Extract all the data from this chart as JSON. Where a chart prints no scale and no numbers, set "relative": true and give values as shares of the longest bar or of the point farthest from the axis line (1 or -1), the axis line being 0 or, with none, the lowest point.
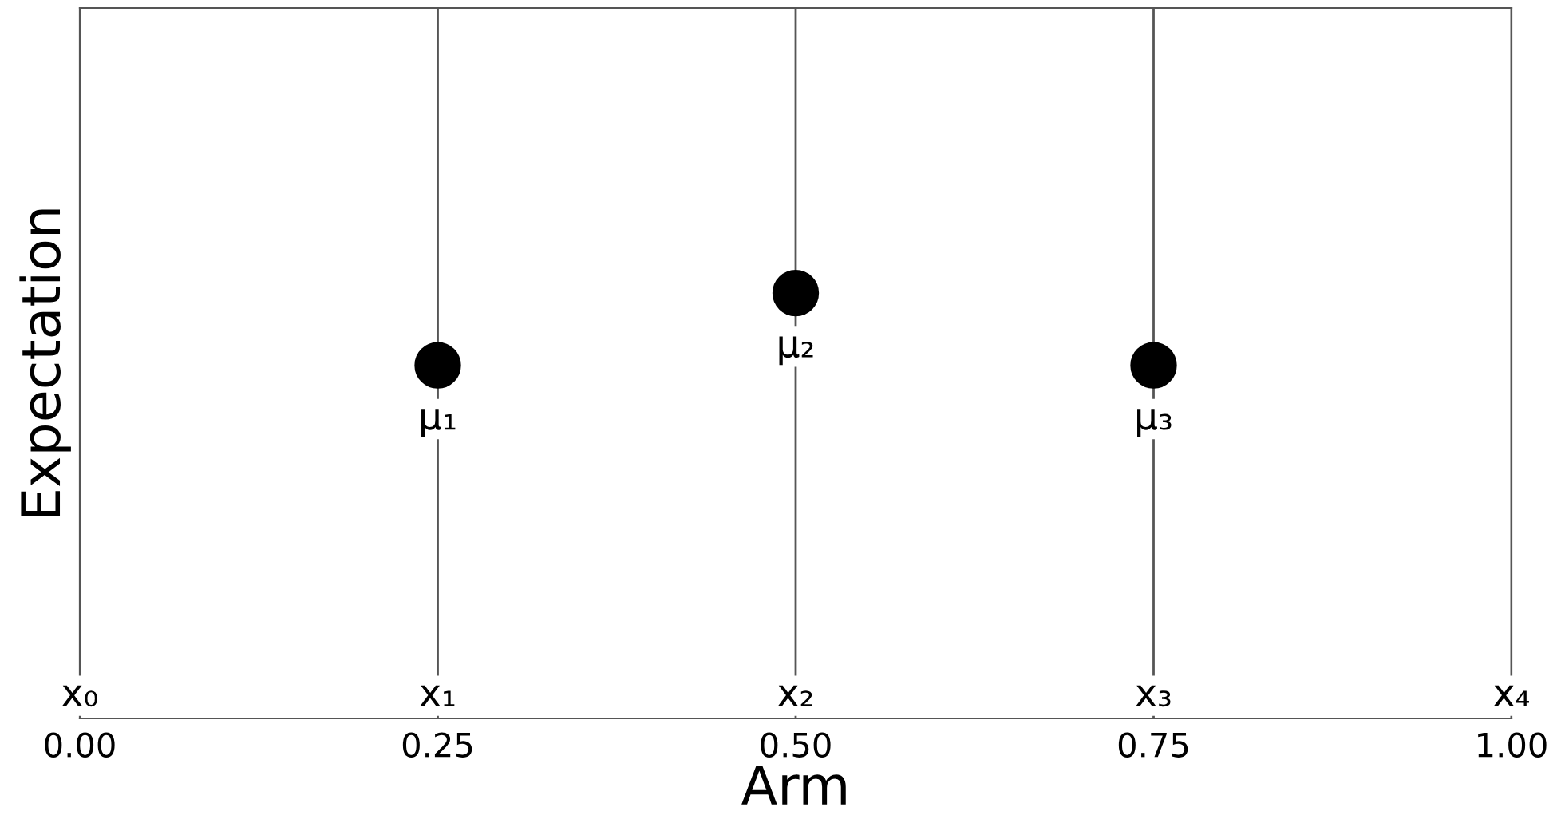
{
  "chart_data": {
    "type": "scatter",
    "xlabel": "Arm",
    "ylabel": "Expectation",
    "relative": true,
    "x": [
      0.25,
      0.5,
      0.75
    ],
    "series": [
      {
        "color": "#000000",
        "values": [
          0.83,
          1,
          0.83
        ]
      }
    ],
    "marker": "circle",
    "xlim": [
      0,
      1
    ],
    "xticks": [
      {
        "value": 0,
        "label": "0.00"
      },
      {
        "value": 0.25,
        "label": "0.25"
      },
      {
        "value": 0.5,
        "label": "0.50"
      },
      {
        "value": 0.75,
        "label": "0.75"
      },
      {
        "value": 1,
        "label": "1.00"
      }
    ],
    "ref_lines": [
      {
        "axis": "x",
        "value": 0,
        "label": "x₀",
        "color": "#555555"
      },
      {
        "axis": "x",
        "value": 0.25,
        "label": "x₁",
        "color": "#555555"
      },
      {
        "axis": "x",
        "value": 0.5,
        "label": "x₂",
        "color": "#555555"
      },
      {
        "axis": "x",
        "value": 0.75,
        "label": "x₃",
        "color": "#555555"
      },
      {
        "axis": "x",
        "value": 1,
        "label": "x₄",
        "color": "#555555"
      }
    ],
    "annotations": [
      {
        "text": "μ₁",
        "x": 0.25,
        "y": 0.83
      },
      {
        "text": "μ₂",
        "x": 0.5,
        "y": 1
      },
      {
        "text": "μ₃",
        "x": 0.75,
        "y": 0.83
      }
    ],
    "grid": false,
    "legend": false
  }
}
